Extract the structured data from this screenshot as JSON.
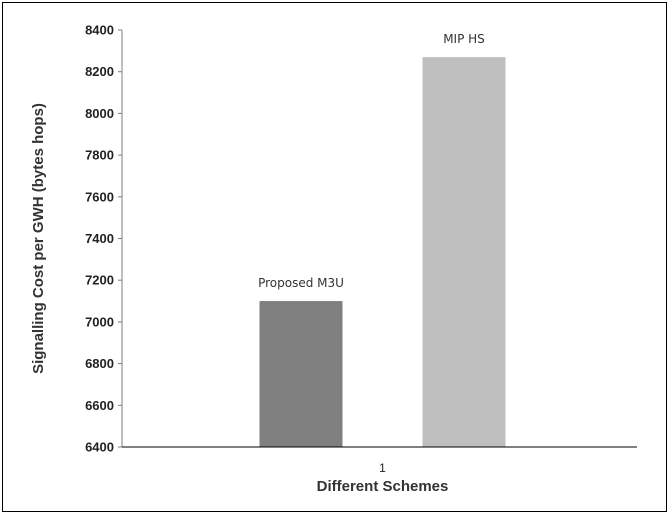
{
  "chart_data": {
    "type": "bar",
    "categories": [
      "1"
    ],
    "series": [
      {
        "name": "Proposed M3U",
        "values": [
          7100
        ],
        "color": "#808080"
      },
      {
        "name": "MIP HS",
        "values": [
          8270
        ],
        "color": "#bfbfbf"
      }
    ],
    "xlabel": "Different Schemes",
    "ylabel": "Signalling Cost per GWH (bytes hops)",
    "ylim": [
      6400,
      8400
    ],
    "yticks": [
      6400,
      6600,
      6800,
      7000,
      7200,
      7400,
      7600,
      7800,
      8000,
      8200,
      8400
    ],
    "grid": false,
    "legend": "none"
  }
}
